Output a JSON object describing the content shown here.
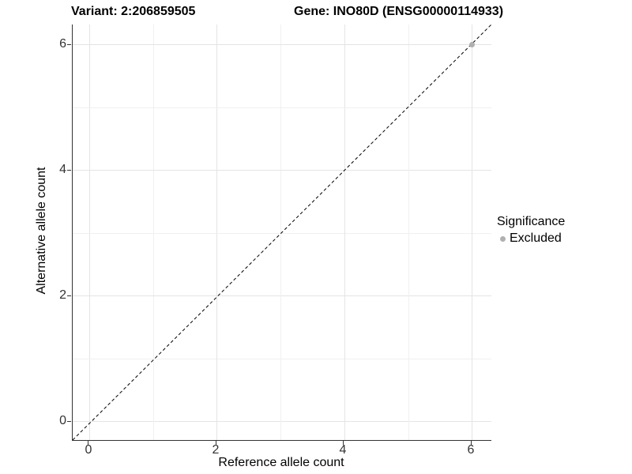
{
  "header": {
    "variant_title": "Variant: 2:206859505",
    "gene_title": "Gene: INO80D (ENSG00000114933)"
  },
  "axes": {
    "x_label": "Reference allele count",
    "y_label": "Alternative allele count",
    "x_ticks": [
      "0",
      "2",
      "4",
      "6"
    ],
    "y_ticks": [
      "0",
      "2",
      "4",
      "6"
    ]
  },
  "legend": {
    "title": "Significance",
    "items": [
      {
        "label": "Excluded",
        "color": "#b0b0b0",
        "marker": "circle"
      }
    ]
  },
  "colors": {
    "background": "#ffffff",
    "axis_line": "#333333",
    "grid_major": "#e4e4e4",
    "grid_minor": "#f0f0f0",
    "excluded_point": "#b0b0b0",
    "identity_line": "#000000"
  },
  "chart_data": {
    "type": "scatter",
    "title": "Variant: 2:206859505 | Gene: INO80D (ENSG00000114933)",
    "xlabel": "Reference allele count",
    "ylabel": "Alternative allele count",
    "xlim": [
      -0.3,
      6.3
    ],
    "ylim": [
      -0.3,
      6.3
    ],
    "x_tick_values": [
      0,
      2,
      4,
      6
    ],
    "y_tick_values": [
      0,
      2,
      4,
      6
    ],
    "grid_values": [
      0,
      1,
      2,
      3,
      4,
      5,
      6
    ],
    "grid": "on",
    "legend_title": "Significance",
    "legend_position": "right",
    "series": [
      {
        "name": "Excluded",
        "color": "#b0b0b0",
        "marker": "circle",
        "points": [
          {
            "x": 6,
            "y": 6
          }
        ]
      }
    ],
    "reference_line": {
      "equation": "y = x",
      "style": "dashed",
      "color": "#000000",
      "from": [
        -0.3,
        -0.3
      ],
      "to": [
        6.3,
        6.3
      ]
    }
  }
}
